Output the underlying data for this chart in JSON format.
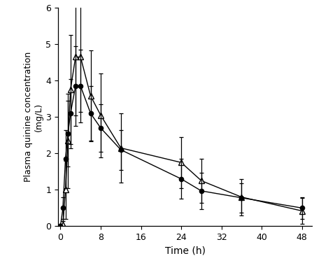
{
  "title": "",
  "xlabel": "Time (h)",
  "ylabel": "Plasma quinine concentration\n(mg/L)",
  "xlim": [
    -0.5,
    50
  ],
  "ylim": [
    0,
    6
  ],
  "xticks": [
    0,
    8,
    16,
    24,
    32,
    40,
    48
  ],
  "yticks": [
    0,
    1,
    2,
    3,
    4,
    5,
    6
  ],
  "obese_time": [
    0,
    0.5,
    1,
    1.5,
    2,
    3,
    4,
    6,
    8,
    12,
    24,
    28,
    36,
    48
  ],
  "obese_mean": [
    0,
    0.5,
    1.85,
    2.55,
    3.1,
    3.85,
    3.85,
    3.1,
    2.7,
    2.1,
    1.3,
    0.97,
    0.78,
    0.5
  ],
  "obese_sd": [
    0,
    0.3,
    0.8,
    0.9,
    0.95,
    1.1,
    1.0,
    0.75,
    0.65,
    0.55,
    0.55,
    0.5,
    0.4,
    0.3
  ],
  "lean_time": [
    0,
    0.5,
    1,
    1.5,
    2,
    3,
    4,
    6,
    8,
    12,
    24,
    28,
    36,
    48
  ],
  "lean_mean": [
    0,
    0.05,
    1.0,
    2.35,
    3.75,
    4.65,
    4.65,
    3.58,
    3.05,
    2.15,
    1.75,
    1.25,
    0.8,
    0.42
  ],
  "lean_sd": [
    0,
    0.1,
    0.8,
    1.3,
    1.5,
    1.6,
    1.5,
    1.25,
    1.15,
    0.95,
    0.7,
    0.6,
    0.5,
    0.35
  ],
  "obese_color": "#000000",
  "lean_color": "#000000",
  "background": "#ffffff"
}
